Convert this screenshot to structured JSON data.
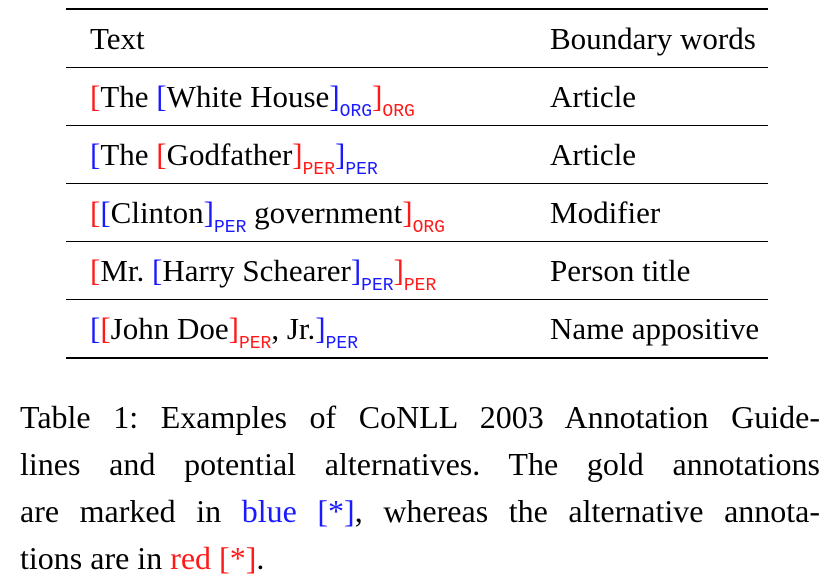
{
  "table": {
    "headers": {
      "text": "Text",
      "boundary": "Boundary words"
    },
    "rows": [
      {
        "segments": [
          {
            "t": "[",
            "c": "red"
          },
          {
            "t": "The ",
            "c": "black"
          },
          {
            "t": "[",
            "c": "blue"
          },
          {
            "t": "White House",
            "c": "black"
          },
          {
            "t": "]",
            "c": "blue"
          },
          {
            "t": "ORG",
            "c": "blue",
            "sub": true
          },
          {
            "t": "]",
            "c": "red"
          },
          {
            "t": "ORG",
            "c": "red",
            "sub": true
          }
        ],
        "boundary": "Article"
      },
      {
        "segments": [
          {
            "t": "[",
            "c": "blue"
          },
          {
            "t": "The ",
            "c": "black"
          },
          {
            "t": "[",
            "c": "red"
          },
          {
            "t": "Godfather",
            "c": "black"
          },
          {
            "t": "]",
            "c": "red"
          },
          {
            "t": "PER",
            "c": "red",
            "sub": true
          },
          {
            "t": "]",
            "c": "blue"
          },
          {
            "t": "PER",
            "c": "blue",
            "sub": true
          }
        ],
        "boundary": "Article"
      },
      {
        "segments": [
          {
            "t": "[",
            "c": "red"
          },
          {
            "t": "[",
            "c": "blue"
          },
          {
            "t": "Clinton",
            "c": "black"
          },
          {
            "t": "]",
            "c": "blue"
          },
          {
            "t": "PER",
            "c": "blue",
            "sub": true
          },
          {
            "t": " government",
            "c": "black"
          },
          {
            "t": "]",
            "c": "red"
          },
          {
            "t": "ORG",
            "c": "red",
            "sub": true
          }
        ],
        "boundary": "Modifier"
      },
      {
        "segments": [
          {
            "t": "[",
            "c": "red"
          },
          {
            "t": "Mr. ",
            "c": "black"
          },
          {
            "t": "[",
            "c": "blue"
          },
          {
            "t": "Harry Schearer",
            "c": "black"
          },
          {
            "t": "]",
            "c": "blue"
          },
          {
            "t": "PER",
            "c": "blue",
            "sub": true
          },
          {
            "t": "]",
            "c": "red"
          },
          {
            "t": "PER",
            "c": "red",
            "sub": true
          }
        ],
        "boundary": "Person title"
      },
      {
        "segments": [
          {
            "t": "[",
            "c": "blue"
          },
          {
            "t": "[",
            "c": "red"
          },
          {
            "t": "John Doe",
            "c": "black"
          },
          {
            "t": "]",
            "c": "red"
          },
          {
            "t": "PER",
            "c": "red",
            "sub": true
          },
          {
            "t": ", Jr.",
            "c": "black"
          },
          {
            "t": "]",
            "c": "blue"
          },
          {
            "t": "PER",
            "c": "blue",
            "sub": true
          }
        ],
        "boundary": "Name appositive"
      }
    ]
  },
  "caption": {
    "line1": "Table 1: Examples of CoNLL 2003 Annotation Guide-",
    "line2": "lines and potential alternatives. The gold annotations",
    "line3_a": "are marked in ",
    "line3_blue": "blue [*]",
    "line3_b": ", whereas the alternative annota-",
    "line4_a": "tions are in ",
    "line4_red": "red [*]",
    "line4_b": "."
  },
  "colors": {
    "blue": "#1a1aff",
    "red": "#ff1a1a"
  }
}
